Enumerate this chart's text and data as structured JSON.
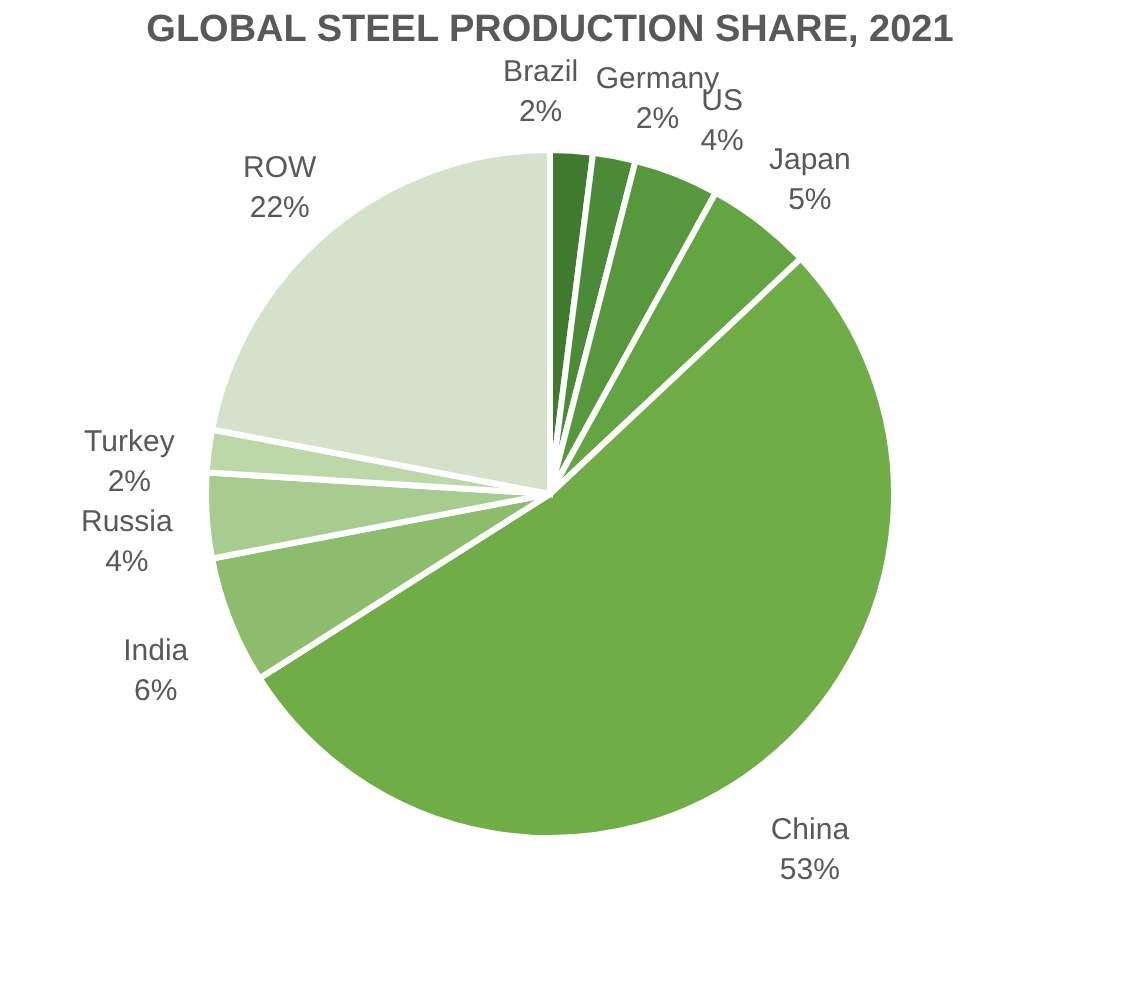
{
  "chart_data": {
    "type": "pie",
    "title": "GLOBAL STEEL PRODUCTION SHARE, 2021",
    "categories": [
      "Brazil",
      "Germany",
      "US",
      "Japan",
      "China",
      "India",
      "Russia",
      "Turkey",
      "ROW"
    ],
    "values": [
      2,
      2,
      4,
      5,
      53,
      6,
      4,
      2,
      22
    ],
    "value_labels": [
      "2%",
      "2%",
      "4%",
      "5%",
      "53%",
      "6%",
      "4%",
      "2%",
      "22%"
    ],
    "colors": [
      "#3f7a2f",
      "#4b8a36",
      "#57983d",
      "#63a443",
      "#70ad47",
      "#8dbc6c",
      "#a8cc8f",
      "#bcd8a9",
      "#d4e2cc"
    ],
    "legend": false
  }
}
